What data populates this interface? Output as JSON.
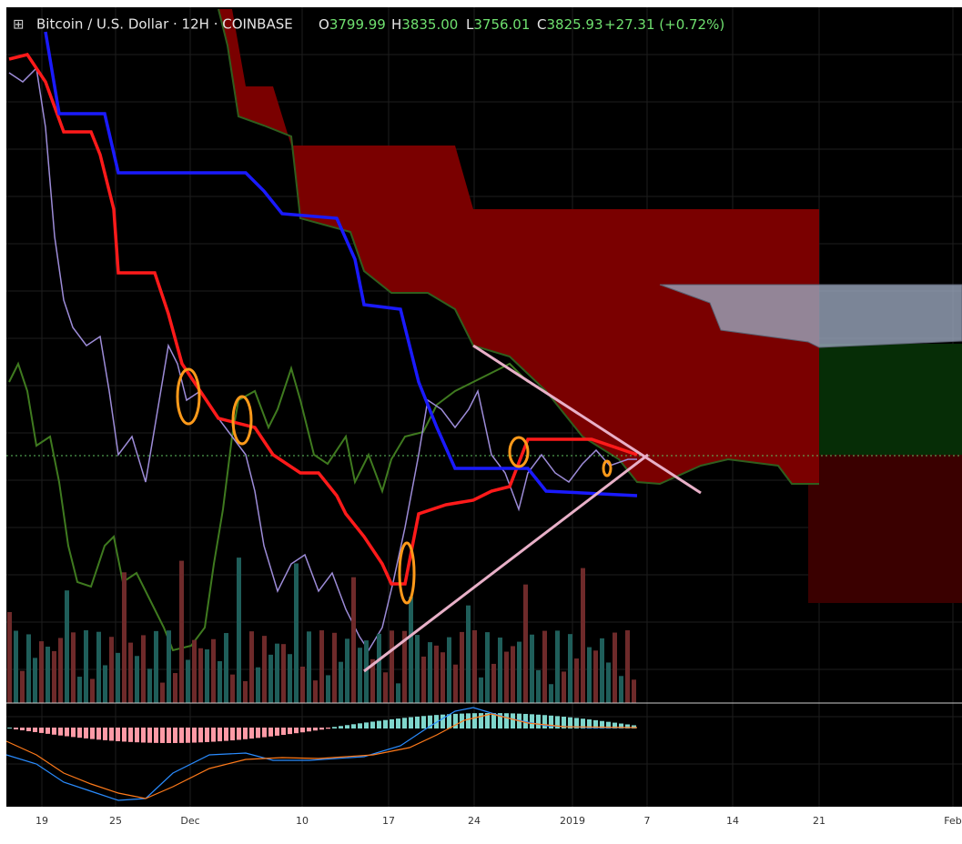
{
  "header": {
    "title": "Bitcoin / U.S. Dollar · 12H · COINBASE",
    "ohlc": [
      {
        "label": "O",
        "value": "3799.99"
      },
      {
        "label": "H",
        "value": "3835.00"
      },
      {
        "label": "L",
        "value": "3756.01"
      },
      {
        "label": "C",
        "value": "3825.93"
      }
    ],
    "change": "+27.31 (+0.72%)"
  },
  "x_axis": {
    "labels": [
      "19",
      "25",
      "Dec",
      "10",
      "17",
      "24",
      "2019",
      "7",
      "14",
      "21",
      "Feb"
    ]
  }
}
